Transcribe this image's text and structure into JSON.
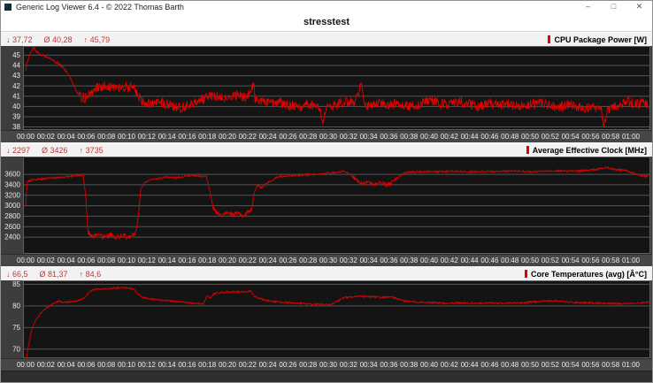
{
  "window_chrome": {
    "title": "Generic Log Viewer 6.4 - © 2022 Thomas Barth",
    "app_icon": "log-viewer",
    "minimize_glyph": "–",
    "maximize_glyph": "□",
    "close_glyph": "✕"
  },
  "doc_title": "stresstest",
  "colors": {
    "series_red": "#e10000",
    "stats_red": "#c23535",
    "plot_bg": "#141414",
    "plot_border": "#606060",
    "grid": "#565656",
    "tick_text": "#e8e8e8",
    "panel_header_bg": "#f2f2f2",
    "axis_strip_bg": "#464646",
    "frame_bg": "#3d3d3d"
  },
  "x_axis": {
    "tick_labels": [
      "00:00",
      "00:02",
      "00:04",
      "00:06",
      "00:08",
      "00:10",
      "00:12",
      "00:14",
      "00:16",
      "00:18",
      "00:20",
      "00:22",
      "00:24",
      "00:26",
      "00:28",
      "00:30",
      "00:32",
      "00:34",
      "00:36",
      "00:38",
      "00:40",
      "00:42",
      "00:44",
      "00:46",
      "00:48",
      "00:50",
      "00:52",
      "00:54",
      "00:56",
      "00:58",
      "01:00"
    ],
    "tick_minutes": [
      0,
      2,
      4,
      6,
      8,
      10,
      12,
      14,
      16,
      18,
      20,
      22,
      24,
      26,
      28,
      30,
      32,
      34,
      36,
      38,
      40,
      42,
      44,
      46,
      48,
      50,
      52,
      54,
      56,
      58,
      60
    ]
  },
  "chart_data": [
    {
      "type": "line",
      "legend": "CPU Package Power [W]",
      "stats": {
        "min": "↓ 37,72",
        "avg": "Ø 40,28",
        "max": "↑ 45,79"
      },
      "stats_values": {
        "min": 37.72,
        "avg": 40.28,
        "max": 45.79
      },
      "ylim": [
        37.7,
        45.9
      ],
      "yticks": [
        45,
        44,
        43,
        42,
        41,
        40,
        39,
        38
      ],
      "xlim_minutes": [
        0,
        61.8
      ],
      "line_color": "#e10000",
      "noise": 0.5,
      "noise_zones": [
        [
          0,
          5.2,
          0.12
        ]
      ],
      "anchors": [
        [
          0,
          43.6
        ],
        [
          0.35,
          45.0
        ],
        [
          0.8,
          45.75
        ],
        [
          1.1,
          45.3
        ],
        [
          1.7,
          45.0
        ],
        [
          2.3,
          44.7
        ],
        [
          2.9,
          44.4
        ],
        [
          3.4,
          44.1
        ],
        [
          3.9,
          43.6
        ],
        [
          4.3,
          43.0
        ],
        [
          4.7,
          42.2
        ],
        [
          5.1,
          41.3
        ],
        [
          5.6,
          40.8
        ],
        [
          6.1,
          40.9
        ],
        [
          6.7,
          41.6
        ],
        [
          7.2,
          41.9
        ],
        [
          8,
          42.0
        ],
        [
          8.8,
          41.9
        ],
        [
          9.6,
          42.0
        ],
        [
          10.3,
          41.9
        ],
        [
          10.8,
          41.7
        ],
        [
          11.2,
          41.0
        ],
        [
          11.7,
          40.4
        ],
        [
          12.5,
          40.2
        ],
        [
          13.4,
          40.4
        ],
        [
          14.3,
          40.1
        ],
        [
          15.2,
          39.9
        ],
        [
          16.1,
          40.1
        ],
        [
          17,
          40.5
        ],
        [
          18,
          40.9
        ],
        [
          19,
          41.0
        ],
        [
          20,
          40.8
        ],
        [
          21,
          41.1
        ],
        [
          22,
          40.9
        ],
        [
          22.6,
          42.2
        ],
        [
          22.75,
          40.8
        ],
        [
          23.3,
          40.5
        ],
        [
          24.2,
          40.3
        ],
        [
          25.1,
          40.5
        ],
        [
          26,
          40.1
        ],
        [
          27,
          40.0
        ],
        [
          28,
          40.2
        ],
        [
          29,
          39.9
        ],
        [
          29.5,
          38.6
        ],
        [
          29.8,
          40.0
        ],
        [
          30.8,
          40.2
        ],
        [
          31.8,
          40.5
        ],
        [
          32.6,
          40.2
        ],
        [
          33.3,
          42.3
        ],
        [
          33.5,
          40.3
        ],
        [
          34.3,
          40.0
        ],
        [
          35.2,
          40.4
        ],
        [
          36.1,
          40.1
        ],
        [
          37,
          40.3
        ],
        [
          38,
          40.0
        ],
        [
          39,
          40.2
        ],
        [
          40,
          40.6
        ],
        [
          41,
          40.3
        ],
        [
          42,
          40.1
        ],
        [
          43,
          40.5
        ],
        [
          44,
          40.2
        ],
        [
          45,
          40.0
        ],
        [
          46,
          40.4
        ],
        [
          47,
          40.1
        ],
        [
          48,
          40.3
        ],
        [
          49,
          40.0
        ],
        [
          50,
          40.2
        ],
        [
          51,
          40.4
        ],
        [
          52,
          40.1
        ],
        [
          53,
          39.9
        ],
        [
          54,
          40.2
        ],
        [
          55,
          39.9
        ],
        [
          56,
          39.8
        ],
        [
          57,
          40.0
        ],
        [
          57.35,
          38.1
        ],
        [
          57.7,
          39.6
        ],
        [
          58.3,
          39.9
        ],
        [
          59,
          40.1
        ],
        [
          59.7,
          40.5
        ],
        [
          60.4,
          40.2
        ],
        [
          61.1,
          40.4
        ],
        [
          61.8,
          40.3
        ]
      ]
    },
    {
      "type": "line",
      "legend": "Average Effective Clock [MHz]",
      "stats": {
        "min": "↓ 2297",
        "avg": "Ø 3426",
        "max": "↑ 3735"
      },
      "stats_values": {
        "min": 2297,
        "avg": 3426,
        "max": 3735
      },
      "ylim": [
        2080,
        3940
      ],
      "yticks": [
        3600,
        3400,
        3200,
        3000,
        2800,
        2600,
        2400
      ],
      "xlim_minutes": [
        0,
        61.8
      ],
      "line_color": "#e10000",
      "noise": 18,
      "noise_zones": [
        [
          5.95,
          11.1,
          50
        ],
        [
          18.4,
          22.5,
          45
        ],
        [
          32.4,
          36.8,
          40
        ]
      ],
      "anchors": [
        [
          0,
          2990
        ],
        [
          0.15,
          3460
        ],
        [
          0.6,
          3490
        ],
        [
          1.2,
          3510
        ],
        [
          2,
          3520
        ],
        [
          3,
          3535
        ],
        [
          4,
          3550
        ],
        [
          5,
          3570
        ],
        [
          5.7,
          3590
        ],
        [
          5.95,
          3200
        ],
        [
          6.2,
          2480
        ],
        [
          6.6,
          2420
        ],
        [
          7.2,
          2450
        ],
        [
          7.8,
          2400
        ],
        [
          8.4,
          2440
        ],
        [
          9,
          2405
        ],
        [
          9.6,
          2430
        ],
        [
          10.2,
          2400
        ],
        [
          10.8,
          2440
        ],
        [
          11.1,
          2700
        ],
        [
          11.25,
          2950
        ],
        [
          11.4,
          3300
        ],
        [
          11.8,
          3450
        ],
        [
          12.4,
          3500
        ],
        [
          13.2,
          3520
        ],
        [
          14,
          3555
        ],
        [
          14.8,
          3530
        ],
        [
          15.6,
          3560
        ],
        [
          16.4,
          3575
        ],
        [
          17.2,
          3565
        ],
        [
          17.9,
          3560
        ],
        [
          18.3,
          3240
        ],
        [
          18.6,
          2950
        ],
        [
          19,
          2860
        ],
        [
          19.5,
          2800
        ],
        [
          20,
          2880
        ],
        [
          20.5,
          2820
        ],
        [
          21,
          2870
        ],
        [
          21.5,
          2800
        ],
        [
          22,
          2860
        ],
        [
          22.4,
          2920
        ],
        [
          22.7,
          3280
        ],
        [
          23,
          3390
        ],
        [
          23.4,
          3340
        ],
        [
          23.8,
          3420
        ],
        [
          24.4,
          3480
        ],
        [
          25,
          3555
        ],
        [
          26,
          3570
        ],
        [
          27,
          3585
        ],
        [
          28,
          3595
        ],
        [
          29,
          3605
        ],
        [
          30,
          3625
        ],
        [
          31,
          3645
        ],
        [
          31.6,
          3655
        ],
        [
          32.2,
          3600
        ],
        [
          32.8,
          3480
        ],
        [
          33.4,
          3420
        ],
        [
          34,
          3450
        ],
        [
          34.6,
          3390
        ],
        [
          35.2,
          3440
        ],
        [
          35.8,
          3400
        ],
        [
          36.4,
          3450
        ],
        [
          37,
          3560
        ],
        [
          37.6,
          3625
        ],
        [
          38.4,
          3645
        ],
        [
          39.5,
          3655
        ],
        [
          41,
          3650
        ],
        [
          42.5,
          3660
        ],
        [
          44,
          3650
        ],
        [
          45.5,
          3660
        ],
        [
          47,
          3655
        ],
        [
          48.5,
          3665
        ],
        [
          50,
          3655
        ],
        [
          51.5,
          3660
        ],
        [
          53,
          3670
        ],
        [
          54.5,
          3660
        ],
        [
          56,
          3680
        ],
        [
          57,
          3710
        ],
        [
          57.6,
          3730
        ],
        [
          58.4,
          3690
        ],
        [
          59.2,
          3680
        ],
        [
          60,
          3640
        ],
        [
          60.8,
          3590
        ],
        [
          61.4,
          3560
        ],
        [
          61.8,
          3580
        ]
      ]
    },
    {
      "type": "line",
      "legend": "Core Temperatures (avg) [Â°C]",
      "stats": {
        "min": "↓ 66,5",
        "avg": "Ø 81,37",
        "max": "↑ 84,6"
      },
      "stats_values": {
        "min": 66.5,
        "avg": 81.37,
        "max": 84.6
      },
      "ylim": [
        67.9,
        85.9
      ],
      "yticks": [
        85,
        80,
        75,
        70
      ],
      "xlim_minutes": [
        0,
        61.8
      ],
      "line_color": "#e10000",
      "noise": 0.2,
      "noise_zones": [
        [
          0,
          1.3,
          0.08
        ]
      ],
      "anchors": [
        [
          0,
          66.5
        ],
        [
          0.25,
          70.5
        ],
        [
          0.6,
          74.5
        ],
        [
          1,
          76.8
        ],
        [
          1.5,
          78.3
        ],
        [
          2.1,
          79.6
        ],
        [
          2.8,
          80.6
        ],
        [
          3.3,
          81.1
        ],
        [
          3.9,
          80.8
        ],
        [
          4.6,
          81.0
        ],
        [
          5.3,
          81.3
        ],
        [
          5.9,
          82.0
        ],
        [
          6.4,
          83.4
        ],
        [
          7,
          83.8
        ],
        [
          7.8,
          84.0
        ],
        [
          8.6,
          84.1
        ],
        [
          9.4,
          84.2
        ],
        [
          10.2,
          84.1
        ],
        [
          10.7,
          83.9
        ],
        [
          11.1,
          82.8
        ],
        [
          11.6,
          82.0
        ],
        [
          12.2,
          81.7
        ],
        [
          13,
          81.4
        ],
        [
          14,
          81.2
        ],
        [
          15,
          81.0
        ],
        [
          16,
          80.8
        ],
        [
          16.8,
          80.6
        ],
        [
          17.6,
          80.4
        ],
        [
          18,
          82.4
        ],
        [
          18.25,
          81.7
        ],
        [
          18.7,
          82.8
        ],
        [
          19.3,
          83.1
        ],
        [
          20,
          83.2
        ],
        [
          21,
          83.3
        ],
        [
          22,
          83.2
        ],
        [
          22.3,
          83.6
        ],
        [
          22.7,
          82.2
        ],
        [
          23.3,
          81.6
        ],
        [
          24.2,
          81.1
        ],
        [
          25.2,
          80.9
        ],
        [
          26.5,
          80.7
        ],
        [
          28,
          80.5
        ],
        [
          29.3,
          80.3
        ],
        [
          30.2,
          80.3
        ],
        [
          30.9,
          81.0
        ],
        [
          31.4,
          81.9
        ],
        [
          32.2,
          82.1
        ],
        [
          33.2,
          82.2
        ],
        [
          34.2,
          82.1
        ],
        [
          35.2,
          82.0
        ],
        [
          36.2,
          82.1
        ],
        [
          36.9,
          81.6
        ],
        [
          37.6,
          81.1
        ],
        [
          38.6,
          80.9
        ],
        [
          40,
          80.8
        ],
        [
          41.5,
          80.6
        ],
        [
          43,
          80.7
        ],
        [
          44.5,
          80.6
        ],
        [
          46,
          80.7
        ],
        [
          47.5,
          80.6
        ],
        [
          49,
          80.7
        ],
        [
          50.3,
          80.9
        ],
        [
          51.3,
          81.1
        ],
        [
          52.3,
          81.2
        ],
        [
          53.3,
          81.0
        ],
        [
          54.5,
          80.8
        ],
        [
          56,
          80.7
        ],
        [
          57.5,
          80.6
        ],
        [
          59,
          80.5
        ],
        [
          60,
          80.6
        ],
        [
          61,
          80.7
        ],
        [
          61.8,
          80.9
        ]
      ]
    }
  ]
}
